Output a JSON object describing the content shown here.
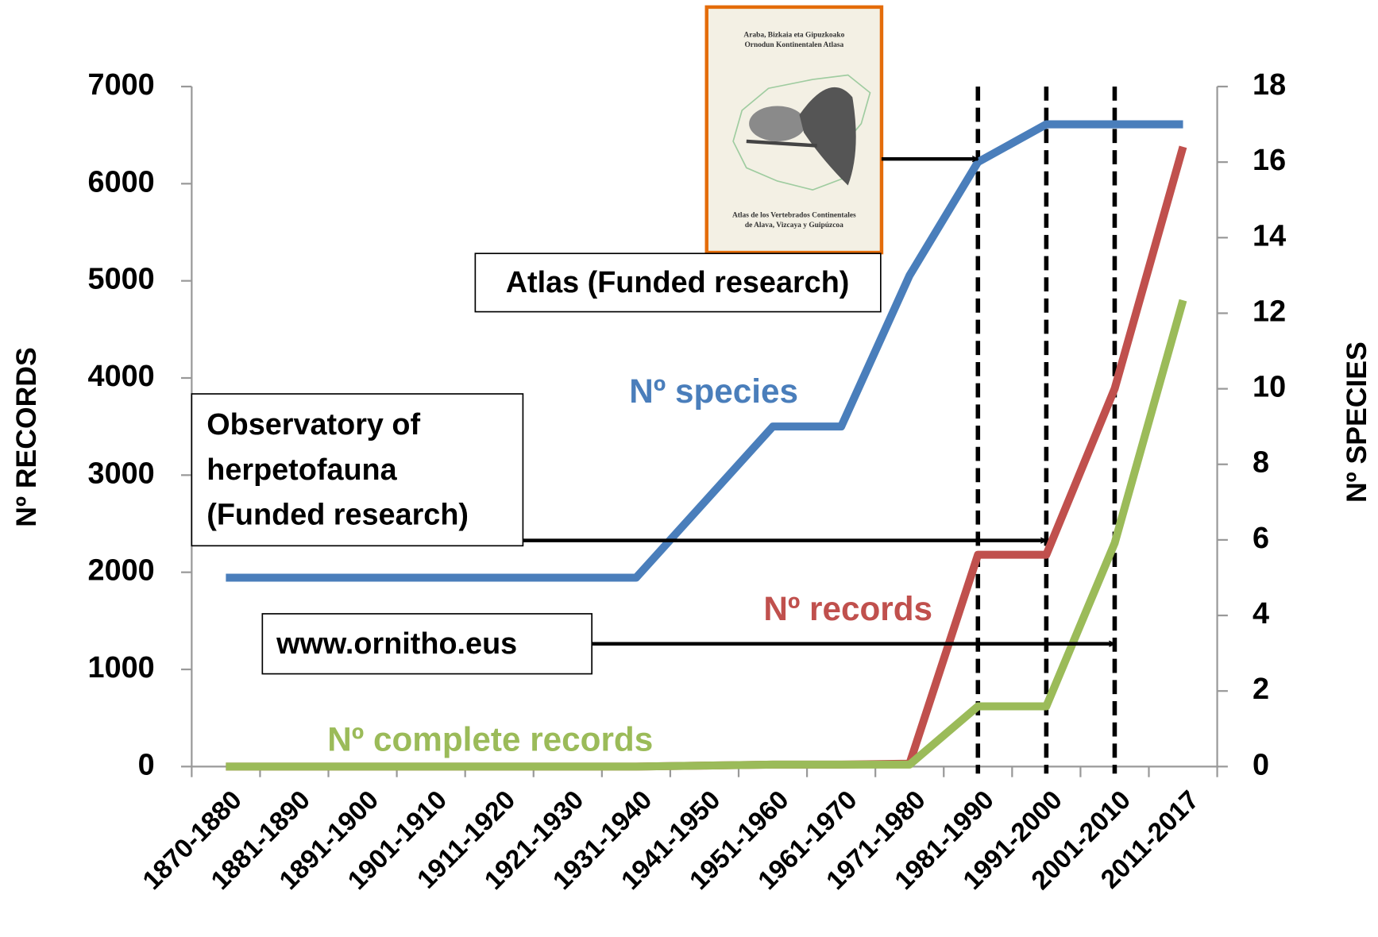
{
  "chart_data": {
    "type": "line",
    "categories": [
      "1870-1880",
      "1881-1890",
      "1891-1900",
      "1901-1910",
      "1911-1920",
      "1921-1930",
      "1931-1940",
      "1941-1950",
      "1951-1960",
      "1961-1970",
      "1971-1980",
      "1981-1990",
      "1991-2000",
      "2001-2010",
      "2011-2017"
    ],
    "series": [
      {
        "name": "Nº species",
        "color": "#4a7ebb",
        "axis": "y2",
        "values": [
          5,
          5,
          5,
          5,
          5,
          5,
          5,
          7,
          9,
          9,
          13,
          16,
          17,
          17,
          17
        ]
      },
      {
        "name": "Nº records",
        "color": "#c0504d",
        "values": [
          0,
          0,
          0,
          0,
          0,
          0,
          0,
          10,
          20,
          20,
          30,
          2180,
          2180,
          3890,
          6380
        ]
      },
      {
        "name": "Nº complete records",
        "color": "#9bbb59",
        "values": [
          0,
          0,
          0,
          0,
          0,
          0,
          0,
          10,
          20,
          20,
          20,
          620,
          620,
          2300,
          4800
        ]
      }
    ],
    "ylabel": "Nº RECORDS",
    "y2label": "Nº SPECIES",
    "ylim": [
      0,
      7000
    ],
    "yticks": [
      0,
      1000,
      2000,
      3000,
      4000,
      5000,
      6000,
      7000
    ],
    "y2lim": [
      0,
      18
    ],
    "y2ticks": [
      0,
      2,
      4,
      6,
      8,
      10,
      12,
      14,
      16,
      18
    ],
    "grid": false,
    "annotations": {
      "atlas": "Atlas (Funded research)",
      "observatory": [
        "Observatory of",
        "herpetofauna",
        "(Funded research)"
      ],
      "ornitho": "www.ornitho.eus",
      "book_title": [
        "Araba, Bizkaia eta Gipuzkoako",
        "Ornodun Kontinentalen Atlasa"
      ],
      "book_subtitle": [
        "Atlas de los Vertebrados Continentales",
        "de Alava, Vizcaya y Guipúzcoa"
      ]
    }
  }
}
